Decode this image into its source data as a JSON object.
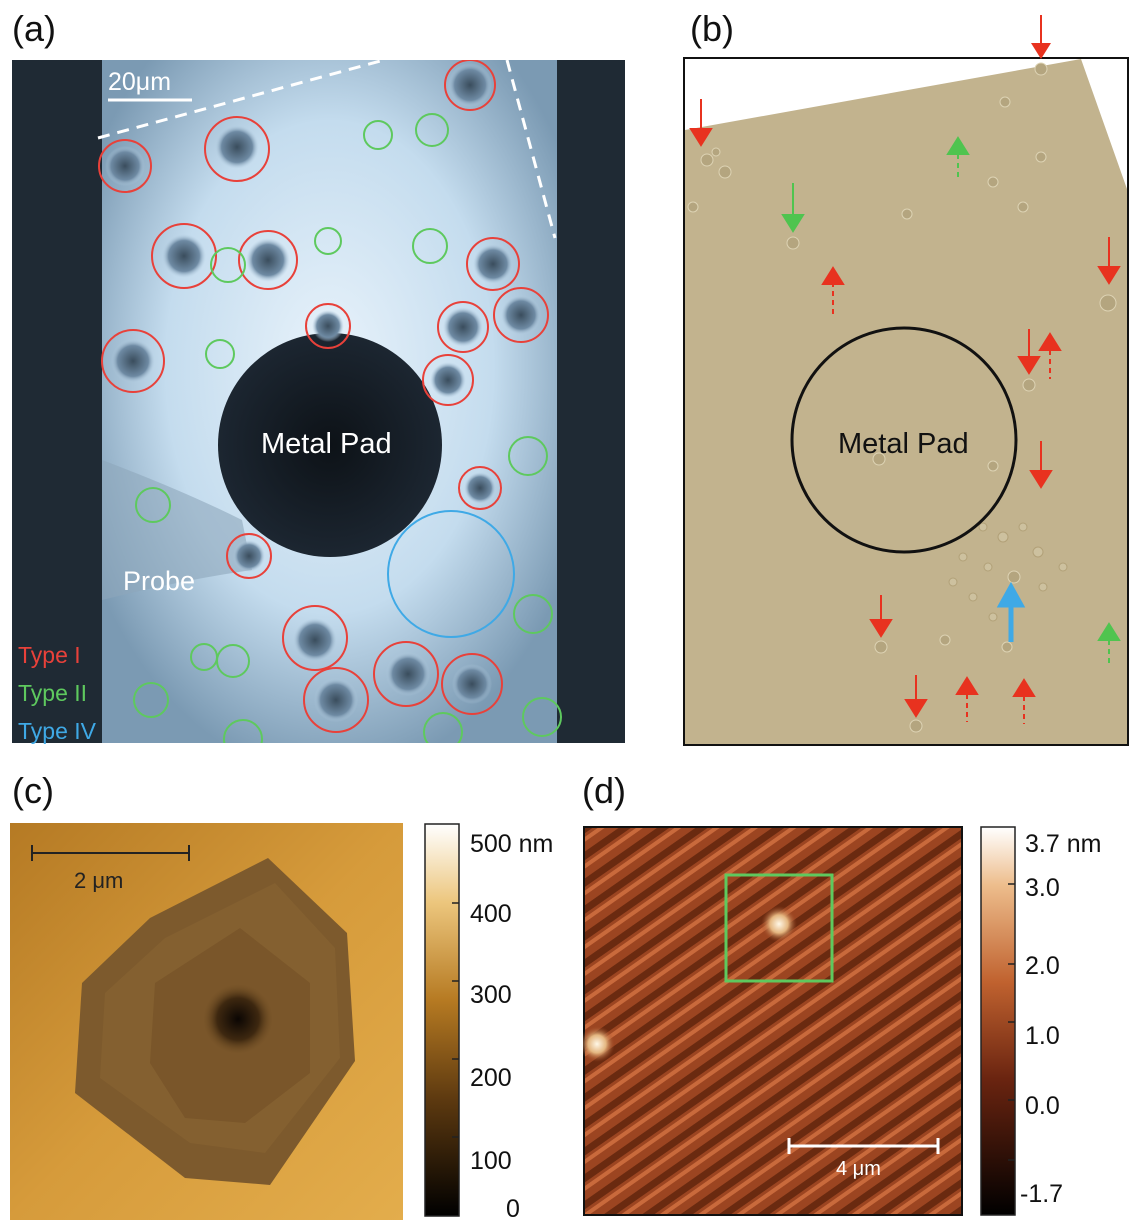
{
  "panels": {
    "a": {
      "letter": "(a)",
      "scale_bar": "20μm",
      "pad_label": "Metal Pad",
      "probe_label": "Probe",
      "legend": [
        {
          "label": "Type I",
          "color": "#e8413a"
        },
        {
          "label": "Type II",
          "color": "#5ec95e"
        },
        {
          "label": "Type IV",
          "color": "#3fa9e6"
        }
      ]
    },
    "b": {
      "letter": "(b)",
      "pad_label": "Metal Pad"
    },
    "c": {
      "letter": "(c)",
      "scale_bar": "2 μm",
      "colorbar": {
        "unit_label": "500 nm",
        "ticks": [
          "400",
          "300",
          "200",
          "100",
          "0"
        ]
      }
    },
    "d": {
      "letter": "(d)",
      "scale_bar": "4 μm",
      "colorbar": {
        "unit_label": "3.7 nm",
        "ticks": [
          "3.0",
          "2.0",
          "1.0",
          "0.0",
          "-1.7"
        ]
      }
    }
  },
  "colors": {
    "type_i": "#e8413a",
    "type_ii": "#5ec95e",
    "type_iv": "#3fa9e6",
    "arrow_red": "#e8321f",
    "arrow_green": "#4fc44f",
    "arrow_blue": "#3fa9e6"
  }
}
